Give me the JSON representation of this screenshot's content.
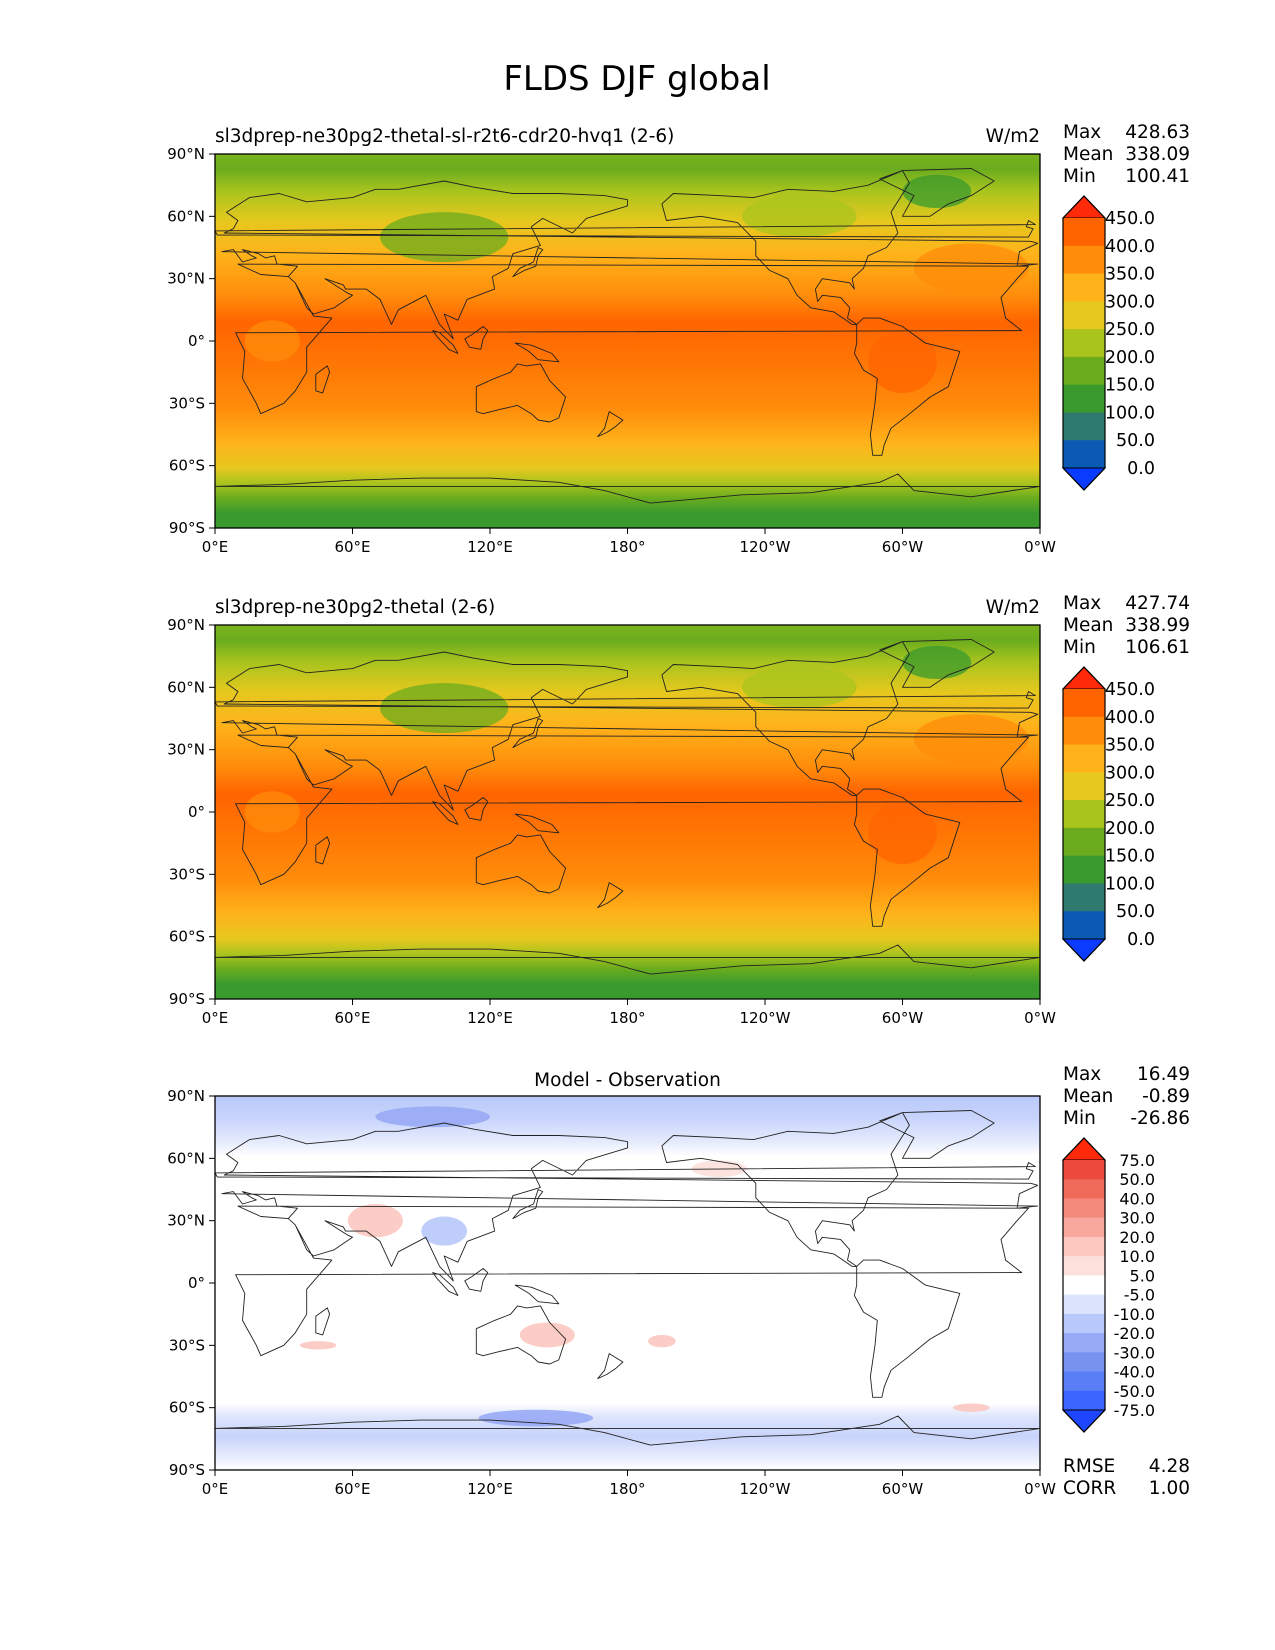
{
  "figure": {
    "title": "FLDS DJF global"
  },
  "axes": {
    "lat_labels": [
      "90°N",
      "60°N",
      "30°N",
      "0°",
      "30°S",
      "60°S",
      "90°S"
    ],
    "lon_labels": [
      "0°E",
      "60°E",
      "120°E",
      "180°",
      "120°W",
      "60°W",
      "0°W"
    ]
  },
  "panels": [
    {
      "title": "sl3dprep-ne30pg2-thetal-sl-r2t6-cdr20-hvq1 (2-6)",
      "units": "W/m2",
      "stats": {
        "labels": [
          "Max",
          "Mean",
          "Min"
        ],
        "values": [
          "428.63",
          "338.09",
          "100.41"
        ]
      },
      "levels": [
        "0.0",
        "50.0",
        "100.0",
        "150.0",
        "200.0",
        "250.0",
        "300.0",
        "350.0",
        "400.0",
        "450.0"
      ]
    },
    {
      "title": "sl3dprep-ne30pg2-thetal (2-6)",
      "units": "W/m2",
      "stats": {
        "labels": [
          "Max",
          "Mean",
          "Min"
        ],
        "values": [
          "427.74",
          "338.99",
          "106.61"
        ]
      },
      "levels": [
        "0.0",
        "50.0",
        "100.0",
        "150.0",
        "200.0",
        "250.0",
        "300.0",
        "350.0",
        "400.0",
        "450.0"
      ]
    },
    {
      "title": "Model - Observation",
      "units": "",
      "stats": {
        "labels": [
          "Max",
          "Mean",
          "Min"
        ],
        "values": [
          "16.49",
          "-0.89",
          "-26.86"
        ]
      },
      "levels": [
        "-75.0",
        "-50.0",
        "-40.0",
        "-30.0",
        "-20.0",
        "-10.0",
        "-5.0",
        "5.0",
        "10.0",
        "20.0",
        "30.0",
        "40.0",
        "50.0",
        "75.0"
      ],
      "metrics": {
        "labels": [
          "RMSE",
          "CORR"
        ],
        "values": [
          "4.28",
          "1.00"
        ]
      }
    }
  ],
  "colors": {
    "abs_scale": [
      "#0a3cff",
      "#0a5ab4",
      "#2e7a6e",
      "#3a9a2e",
      "#6aac1e",
      "#aac41e",
      "#e6c81e",
      "#ffb21a",
      "#ff8c0a",
      "#ff6400",
      "#ff2a0a"
    ],
    "diff_scale": [
      "#1e46ff",
      "#3c64ff",
      "#5a7ef5",
      "#7892f0",
      "#98aaf5",
      "#b8c8fa",
      "#dce4fc",
      "#ffffff",
      "#fde0dc",
      "#fcc8c0",
      "#f8a89c",
      "#f48a7c",
      "#f06a5a",
      "#ec4a3c",
      "#ff2a0a"
    ]
  },
  "chart_data": [
    {
      "type": "heatmap",
      "title": "sl3dprep-ne30pg2-thetal-sl-r2t6-cdr20-hvq1 (2-6)",
      "variable": "FLDS",
      "season": "DJF",
      "units": "W/m2",
      "x": {
        "range": [
          0,
          360
        ],
        "tick_labels": [
          "0°E",
          "60°E",
          "120°E",
          "180°",
          "120°W",
          "60°W",
          "0°W"
        ]
      },
      "y": {
        "range": [
          -90,
          90
        ],
        "tick_labels": [
          "90°N",
          "60°N",
          "30°N",
          "0°",
          "30°S",
          "60°S",
          "90°S"
        ]
      },
      "levels": [
        0,
        50,
        100,
        150,
        200,
        250,
        300,
        350,
        400,
        450
      ],
      "stats": {
        "max": 428.63,
        "mean": 338.09,
        "min": 100.41
      },
      "zonal_bands": [
        {
          "lat": [
            60,
            90
          ],
          "value": 200
        },
        {
          "lat": [
            40,
            60
          ],
          "value": 275
        },
        {
          "lat": [
            20,
            40
          ],
          "value": 330
        },
        {
          "lat": [
            -15,
            20
          ],
          "value": 400
        },
        {
          "lat": [
            -40,
            -15
          ],
          "value": 370
        },
        {
          "lat": [
            -60,
            -40
          ],
          "value": 320
        },
        {
          "lat": [
            -70,
            -60
          ],
          "value": 275
        },
        {
          "lat": [
            -90,
            -70
          ],
          "value": 170
        }
      ]
    },
    {
      "type": "heatmap",
      "title": "sl3dprep-ne30pg2-thetal (2-6)",
      "variable": "FLDS",
      "season": "DJF",
      "units": "W/m2",
      "x": {
        "range": [
          0,
          360
        ],
        "tick_labels": [
          "0°E",
          "60°E",
          "120°E",
          "180°",
          "120°W",
          "60°W",
          "0°W"
        ]
      },
      "y": {
        "range": [
          -90,
          90
        ],
        "tick_labels": [
          "90°N",
          "60°N",
          "30°N",
          "0°",
          "30°S",
          "60°S",
          "90°S"
        ]
      },
      "levels": [
        0,
        50,
        100,
        150,
        200,
        250,
        300,
        350,
        400,
        450
      ],
      "stats": {
        "max": 427.74,
        "mean": 338.99,
        "min": 106.61
      },
      "zonal_bands": [
        {
          "lat": [
            60,
            90
          ],
          "value": 200
        },
        {
          "lat": [
            40,
            60
          ],
          "value": 275
        },
        {
          "lat": [
            20,
            40
          ],
          "value": 330
        },
        {
          "lat": [
            -15,
            20
          ],
          "value": 400
        },
        {
          "lat": [
            -40,
            -15
          ],
          "value": 370
        },
        {
          "lat": [
            -60,
            -40
          ],
          "value": 320
        },
        {
          "lat": [
            -70,
            -60
          ],
          "value": 275
        },
        {
          "lat": [
            -90,
            -70
          ],
          "value": 170
        }
      ]
    },
    {
      "type": "heatmap",
      "title": "Model - Observation",
      "x": {
        "range": [
          0,
          360
        ],
        "tick_labels": [
          "0°E",
          "60°E",
          "120°E",
          "180°",
          "120°W",
          "60°W",
          "0°W"
        ]
      },
      "y": {
        "range": [
          -90,
          90
        ],
        "tick_labels": [
          "90°N",
          "60°N",
          "30°N",
          "0°",
          "30°S",
          "60°S",
          "90°S"
        ]
      },
      "levels": [
        -75,
        -50,
        -40,
        -30,
        -20,
        -10,
        -5,
        5,
        10,
        20,
        30,
        40,
        50,
        75
      ],
      "stats": {
        "max": 16.49,
        "mean": -0.89,
        "min": -26.86
      },
      "metrics": {
        "rmse": 4.28,
        "corr": 1.0
      },
      "zonal_bands": [
        {
          "lat": [
            70,
            90
          ],
          "value": -8
        },
        {
          "lat": [
            -60,
            70
          ],
          "value": 0
        },
        {
          "lat": [
            -75,
            -60
          ],
          "value": -7
        },
        {
          "lat": [
            -90,
            -75
          ],
          "value": -4
        }
      ]
    }
  ]
}
